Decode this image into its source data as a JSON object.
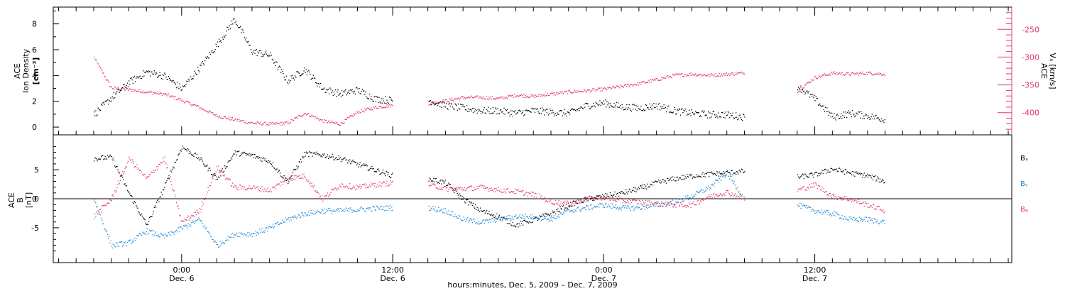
{
  "chart_data": [
    {
      "type": "scatter",
      "panel": "top",
      "ylabel_left": [
        "ACE",
        "Ion Density",
        "[cm⁻³]"
      ],
      "ylabel_right": [
        "ACE",
        "Vₓ [km/s]"
      ],
      "left_ticks": [
        "0",
        "2",
        "4",
        "6",
        "8"
      ],
      "right_ticks": [
        "-250",
        "-300",
        "-350",
        "-400"
      ],
      "ylim_left": [
        -0.6,
        9.3
      ],
      "ylim_right": [
        -440,
        -210
      ],
      "series": [
        {
          "name": "",
          "axis": "left",
          "color": "#000000",
          "x_hours": [
            -5,
            -4,
            -3,
            -2,
            -1,
            0,
            1,
            2,
            3,
            4,
            5,
            6,
            7,
            8,
            9,
            10,
            11,
            12,
            13,
            14,
            15,
            16,
            17,
            18,
            19,
            20,
            21,
            22,
            23,
            24,
            25,
            26,
            27,
            28,
            29,
            30,
            31,
            32,
            33,
            34,
            35,
            36,
            37,
            38,
            39,
            40,
            41,
            42,
            43,
            44,
            45,
            46,
            47,
            48
          ],
          "values": [
            1.0,
            2.3,
            3.5,
            4.3,
            4.0,
            3.0,
            4.6,
            6.4,
            8.4,
            5.9,
            5.6,
            3.6,
            4.5,
            3.0,
            2.6,
            2.9,
            2.2,
            2.1,
            null,
            2.1,
            1.7,
            1.5,
            1.3,
            1.3,
            1.1,
            1.3,
            1.2,
            1.1,
            1.7,
            1.9,
            1.6,
            1.5,
            1.7,
            1.3,
            1.1,
            1.0,
            1.0,
            0.8,
            null,
            null,
            3.2,
            2.2,
            0.8,
            1.1,
            0.9,
            0.6,
            null,
            null,
            null,
            null,
            null,
            null,
            null,
            null
          ]
        },
        {
          "name": "",
          "axis": "right",
          "color": "#e03c64",
          "x_hours": [
            -5,
            -4,
            -3,
            -2,
            -1,
            0,
            1,
            2,
            3,
            4,
            5,
            6,
            7,
            8,
            9,
            10,
            11,
            12,
            13,
            14,
            15,
            16,
            17,
            18,
            19,
            20,
            21,
            22,
            23,
            24,
            25,
            26,
            27,
            28,
            29,
            30,
            31,
            32,
            33,
            34,
            35,
            36,
            37,
            38,
            39,
            40,
            41,
            42,
            43,
            44,
            45,
            46,
            47,
            48
          ],
          "values": [
            -300,
            -355,
            -358,
            -362,
            -366,
            -377,
            -390,
            -405,
            -412,
            -418,
            -420,
            -418,
            -400,
            -414,
            -420,
            -398,
            -390,
            -386,
            null,
            -383,
            -378,
            -372,
            -372,
            -374,
            -368,
            -370,
            -366,
            -362,
            -360,
            -357,
            -352,
            -347,
            -340,
            -332,
            -330,
            -332,
            -330,
            -328,
            null,
            null,
            -360,
            -336,
            -328,
            -330,
            -328,
            -330,
            null,
            null,
            null,
            null,
            null,
            null,
            null,
            null
          ]
        }
      ]
    },
    {
      "type": "scatter",
      "panel": "bottom",
      "ylabel_left": [
        "ACE",
        "B",
        "[nT]"
      ],
      "left_ticks": [
        "5",
        "0",
        "-5"
      ],
      "ylim": [
        -11,
        11
      ],
      "legend": [
        "Bₓ",
        "Bᵧ",
        "Bᵩ"
      ],
      "legend_placement": "right",
      "series": [
        {
          "name": "Bₓ",
          "color": "#000000",
          "x_hours": [
            -5,
            -4,
            -3,
            -2,
            -1,
            0,
            1,
            2,
            3,
            4,
            5,
            6,
            7,
            8,
            9,
            10,
            11,
            12,
            13,
            14,
            15,
            16,
            17,
            18,
            19,
            20,
            21,
            22,
            23,
            24,
            25,
            26,
            27,
            28,
            29,
            30,
            31,
            32,
            33,
            34,
            35,
            36,
            37,
            38,
            39,
            40,
            41,
            42,
            43,
            44,
            45,
            46,
            47,
            48
          ],
          "values": [
            7.0,
            7.2,
            1.0,
            -4.5,
            2.0,
            9.0,
            7.0,
            3.5,
            8.0,
            7.5,
            6.5,
            3.0,
            7.8,
            7.6,
            7.0,
            6.0,
            5.0,
            4.0,
            null,
            3.5,
            2.8,
            0.0,
            -2.0,
            -3.0,
            -4.5,
            -3.5,
            -2.5,
            -1.0,
            0.0,
            0.5,
            1.0,
            1.8,
            2.8,
            3.5,
            4.0,
            4.3,
            4.5,
            4.8,
            null,
            null,
            3.8,
            4.2,
            5.2,
            4.5,
            4.0,
            3.0,
            null,
            null,
            null,
            null,
            null,
            null,
            null,
            null
          ]
        },
        {
          "name": "Bᵧ",
          "color": "#1e88d6",
          "x_hours": [
            -5,
            -4,
            -3,
            -2,
            -1,
            0,
            1,
            2,
            3,
            4,
            5,
            6,
            7,
            8,
            9,
            10,
            11,
            12,
            13,
            14,
            15,
            16,
            17,
            18,
            19,
            20,
            21,
            22,
            23,
            24,
            25,
            26,
            27,
            28,
            29,
            30,
            31,
            32,
            33,
            34,
            35,
            36,
            37,
            38,
            39,
            40,
            41,
            42,
            43,
            44,
            45,
            46,
            47,
            48
          ],
          "values": [
            0.0,
            -8.0,
            -7.5,
            -5.5,
            -6.5,
            -5.0,
            -3.5,
            -8.0,
            -6.0,
            -6.0,
            -5.0,
            -3.5,
            -2.5,
            -2.0,
            -2.0,
            -1.8,
            -1.6,
            -1.5,
            null,
            -1.5,
            -2.0,
            -3.5,
            -4.0,
            -3.5,
            -3.0,
            -3.0,
            -3.5,
            -2.0,
            -1.5,
            -1.0,
            -1.5,
            -1.5,
            -1.0,
            -0.5,
            0.5,
            2.0,
            4.5,
            0.0,
            null,
            null,
            -1.0,
            -2.0,
            -2.5,
            -3.5,
            -3.5,
            -4.0,
            null,
            null,
            null,
            null,
            null,
            null,
            null,
            null
          ]
        },
        {
          "name": "Bᵩ",
          "color": "#e03c64",
          "x_hours": [
            -5,
            -4,
            -3,
            -2,
            -1,
            0,
            1,
            2,
            3,
            4,
            5,
            6,
            7,
            8,
            9,
            10,
            11,
            12,
            13,
            14,
            15,
            16,
            17,
            18,
            19,
            20,
            21,
            22,
            23,
            24,
            25,
            26,
            27,
            28,
            29,
            30,
            31,
            32,
            33,
            34,
            35,
            36,
            37,
            38,
            39,
            40,
            41,
            42,
            43,
            44,
            45,
            46,
            47,
            48
          ],
          "values": [
            -3.0,
            0.0,
            7.0,
            3.5,
            7.0,
            -4.0,
            -2.0,
            5.5,
            2.0,
            2.0,
            1.5,
            3.5,
            4.0,
            0.0,
            2.5,
            2.0,
            2.5,
            2.8,
            null,
            2.5,
            1.8,
            1.8,
            2.0,
            1.6,
            1.3,
            0.8,
            -0.5,
            -0.8,
            0.0,
            0.3,
            -0.3,
            -0.5,
            -0.8,
            -1.0,
            -1.0,
            0.5,
            1.2,
            0.0,
            null,
            null,
            1.5,
            2.5,
            0.5,
            0.0,
            -1.0,
            -2.0,
            null,
            null,
            null,
            null,
            null,
            null,
            null,
            null
          ]
        }
      ]
    }
  ],
  "xaxis": {
    "ticks": [
      {
        "hour": 0,
        "label": "0:00",
        "sublabel": "Dec. 6"
      },
      {
        "hour": 12,
        "label": "12:00",
        "sublabel": "Dec. 6"
      },
      {
        "hour": 24,
        "label": "0:00",
        "sublabel": "Dec. 7"
      },
      {
        "hour": 36,
        "label": "12:00",
        "sublabel": "Dec. 7"
      }
    ],
    "xlim_hours": [
      -7.3,
      47.2
    ],
    "title": "hours:minutes, Dec.  5, 2009 – Dec.  7, 2009"
  }
}
